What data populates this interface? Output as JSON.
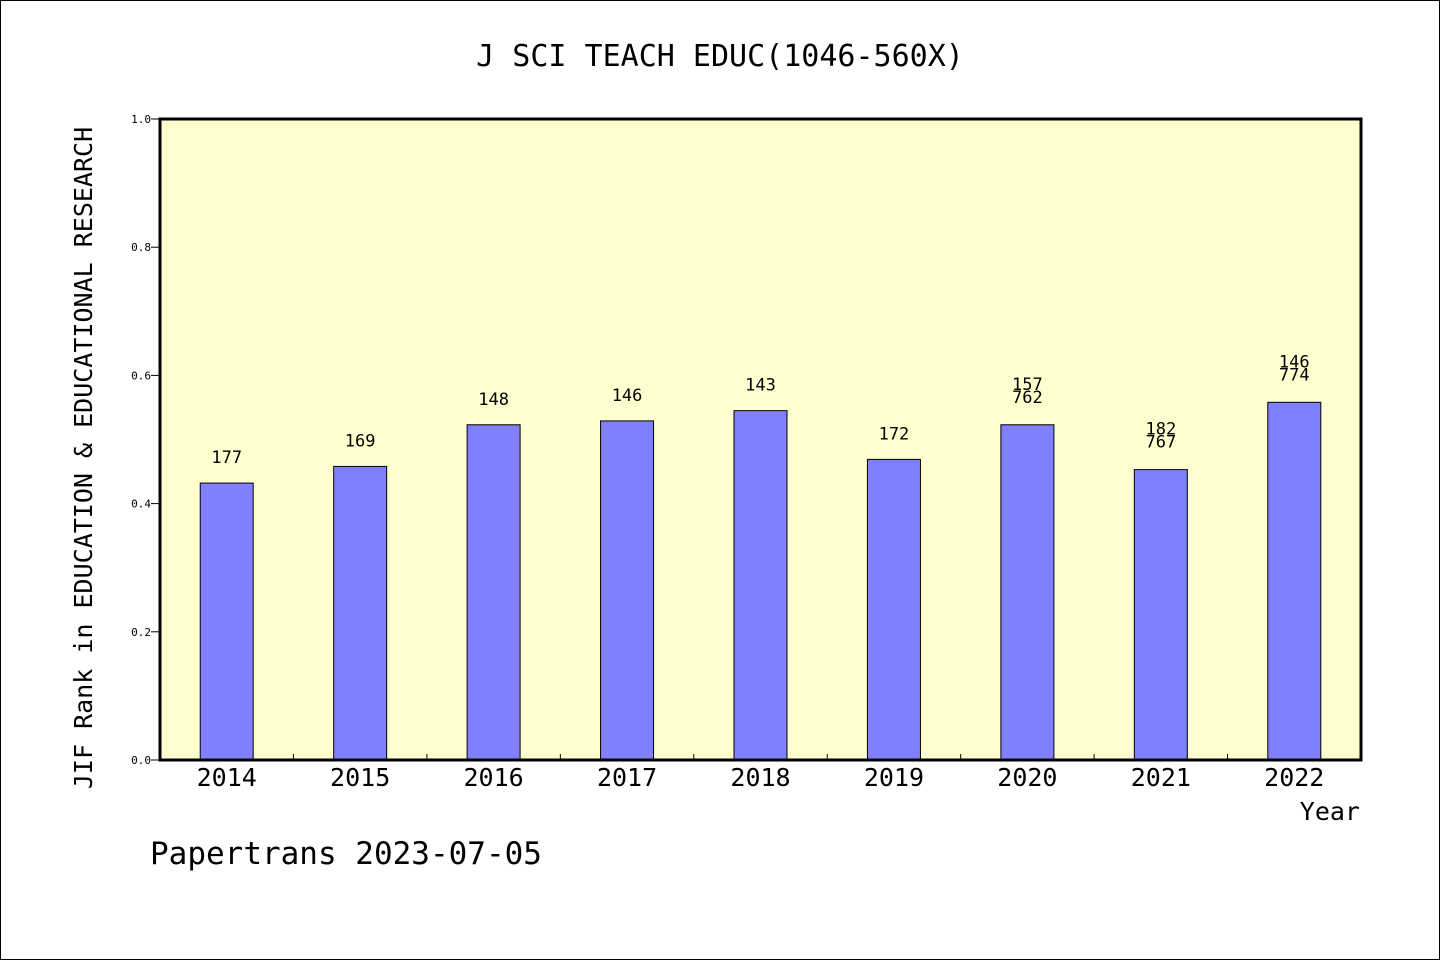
{
  "chart_data": {
    "type": "bar",
    "title": "J SCI TEACH EDUC(1046-560X)",
    "xlabel": "Year",
    "ylabel": "JIF Rank in EDUCATION & EDUCATIONAL RESEARCH",
    "ylim": [
      0,
      1.0
    ],
    "yticks": [
      "0.0",
      "0.2",
      "0.4",
      "0.6",
      "0.8",
      "1.0"
    ],
    "categories": [
      "2014",
      "2015",
      "2016",
      "2017",
      "2018",
      "2019",
      "2020",
      "2021",
      "2022"
    ],
    "values": [
      0.432,
      0.458,
      0.523,
      0.529,
      0.545,
      0.469,
      0.523,
      0.453,
      0.558
    ],
    "labels": [
      [
        "177"
      ],
      [
        "169"
      ],
      [
        "148"
      ],
      [
        "146"
      ],
      [
        "143"
      ],
      [
        "172"
      ],
      [
        "157",
        "762"
      ],
      [
        "182",
        "767"
      ],
      [
        "146",
        "774"
      ]
    ],
    "grid": false,
    "colors": {
      "bar": "#8080ff",
      "plot_background": "#ffffd0",
      "page_background": "#ffffff"
    }
  },
  "footer": {
    "credit": "Papertrans 2023-07-05"
  }
}
